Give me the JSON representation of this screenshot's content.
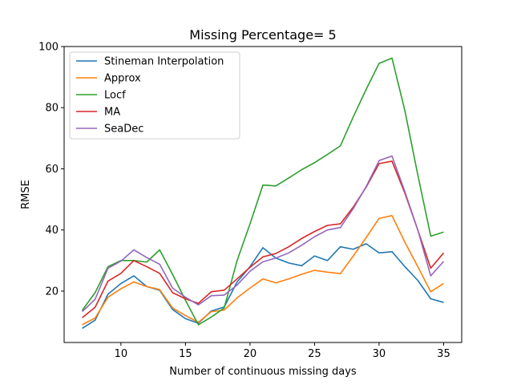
{
  "chart_data": {
    "type": "line",
    "title": "Missing Percentage= 5",
    "xlabel": "Number of continuous missing days",
    "ylabel": "RMSE",
    "xlim": [
      5.6,
      36.4
    ],
    "ylim": [
      3.2,
      100
    ],
    "xticks": [
      10,
      15,
      20,
      25,
      30,
      35
    ],
    "yticks": [
      20,
      40,
      60,
      80,
      100
    ],
    "grid": false,
    "legend_position": "top-left",
    "x": [
      7,
      8,
      9,
      10,
      11,
      12,
      13,
      14,
      15,
      16,
      17,
      18,
      19,
      20,
      21,
      22,
      23,
      24,
      25,
      26,
      27,
      28,
      29,
      30,
      31,
      32,
      33,
      34,
      35
    ],
    "series": [
      {
        "name": "Stineman Interpolation",
        "color": "#1f77b4",
        "values": [
          7.8,
          10.5,
          19.0,
          22.5,
          25.0,
          21.5,
          20.3,
          14.0,
          11.0,
          9.5,
          13.5,
          14.8,
          23.0,
          28.0,
          34.2,
          30.8,
          29.2,
          28.3,
          31.5,
          30.0,
          34.5,
          33.7,
          35.5,
          32.5,
          32.9,
          28.0,
          23.5,
          17.5,
          16.3
        ]
      },
      {
        "name": "Approx",
        "color": "#ff7f0e",
        "values": [
          9.0,
          11.2,
          18.0,
          20.8,
          23.0,
          21.5,
          20.5,
          14.5,
          12.0,
          9.8,
          13.3,
          13.8,
          17.8,
          21.0,
          24.0,
          22.7,
          24.0,
          25.5,
          26.8,
          26.2,
          25.7,
          31.5,
          37.5,
          43.8,
          44.7,
          36.0,
          28.0,
          19.8,
          22.5
        ]
      },
      {
        "name": "Locf",
        "color": "#2ca02c",
        "values": [
          13.7,
          19.5,
          28.0,
          30.0,
          30.0,
          29.5,
          33.5,
          25.5,
          17.0,
          9.0,
          11.5,
          14.5,
          30.0,
          42.0,
          54.7,
          54.4,
          57.0,
          59.7,
          62.0,
          64.7,
          67.5,
          77.0,
          86.0,
          94.5,
          96.2,
          79.0,
          58.0,
          38.0,
          39.3
        ]
      },
      {
        "name": "MA",
        "color": "#d62728",
        "values": [
          11.3,
          14.7,
          23.3,
          25.8,
          30.0,
          28.0,
          25.8,
          19.5,
          17.5,
          16.0,
          19.8,
          20.3,
          24.0,
          27.8,
          31.2,
          32.3,
          34.5,
          37.2,
          39.5,
          41.5,
          42.0,
          47.5,
          54.0,
          61.7,
          62.5,
          52.0,
          40.0,
          27.5,
          32.5
        ]
      },
      {
        "name": "SeaDec",
        "color": "#9467bd",
        "values": [
          13.3,
          17.3,
          27.5,
          29.8,
          33.5,
          31.0,
          28.8,
          21.0,
          18.0,
          15.5,
          18.5,
          18.7,
          22.0,
          26.5,
          29.6,
          30.8,
          32.5,
          35.0,
          37.8,
          40.0,
          40.8,
          47.0,
          54.2,
          62.7,
          64.2,
          52.5,
          40.0,
          25.0,
          29.7
        ]
      }
    ]
  }
}
